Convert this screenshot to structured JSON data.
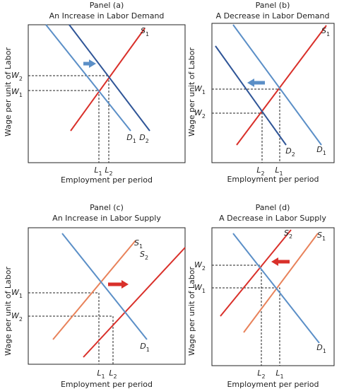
{
  "panels": [
    {
      "panel": "Panel (a)",
      "title": "An Increase in Labor Demand",
      "x_axis": "Employment per period",
      "y_axis": "Wage per unit of Labor",
      "labels": [
        {
          "letter": "S",
          "sub": "1"
        },
        {
          "letter": "D",
          "sub": "1"
        },
        {
          "letter": "D",
          "sub": "2"
        },
        {
          "letter": "W",
          "sub": "2"
        },
        {
          "letter": "W",
          "sub": "1"
        },
        {
          "letter": "L",
          "sub": "1"
        },
        {
          "letter": "L",
          "sub": "2"
        }
      ]
    },
    {
      "panel": "Panel (b)",
      "title": "A Decrease in Labor Demand",
      "x_axis": "Employment per period",
      "y_axis": "Wage per unit of Labor",
      "labels": [
        {
          "letter": "S",
          "sub": "1"
        },
        {
          "letter": "D",
          "sub": "2"
        },
        {
          "letter": "D",
          "sub": "1"
        },
        {
          "letter": "W",
          "sub": "1"
        },
        {
          "letter": "W",
          "sub": "2"
        },
        {
          "letter": "L",
          "sub": "2"
        },
        {
          "letter": "L",
          "sub": "1"
        }
      ]
    },
    {
      "panel": "Panel (c)",
      "title": "An Increase in Labor Supply",
      "x_axis": "Employment per period",
      "y_axis": "Wage per unit of Labor",
      "labels": [
        {
          "letter": "S",
          "sub": "1"
        },
        {
          "letter": "S",
          "sub": "2"
        },
        {
          "letter": "D",
          "sub": "1"
        },
        {
          "letter": "W",
          "sub": "1"
        },
        {
          "letter": "W",
          "sub": "2"
        },
        {
          "letter": "L",
          "sub": "1"
        },
        {
          "letter": "L",
          "sub": "2"
        }
      ]
    },
    {
      "panel": "Panel (d)",
      "title": "A Decrease in Labor Supply",
      "x_axis": "Employment per period",
      "y_axis": "Wage per unit of Labor",
      "labels": [
        {
          "letter": "S",
          "sub": "2"
        },
        {
          "letter": "S",
          "sub": "1"
        },
        {
          "letter": "D",
          "sub": "1"
        },
        {
          "letter": "W",
          "sub": "2"
        },
        {
          "letter": "W",
          "sub": "1"
        },
        {
          "letter": "L",
          "sub": "2"
        },
        {
          "letter": "L",
          "sub": "1"
        }
      ]
    }
  ]
}
